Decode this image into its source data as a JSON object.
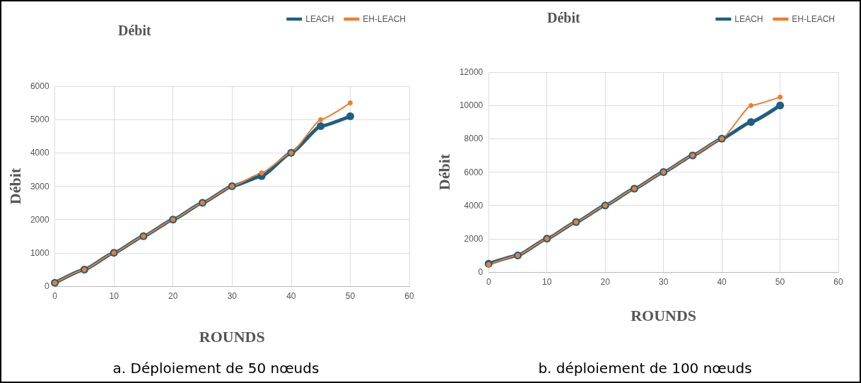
{
  "chart_data": [
    {
      "type": "line",
      "title": "Débit",
      "xlabel": "ROUNDS",
      "ylabel": "Débit",
      "annotations": [
        "a. Déploiement de 50 nœuds"
      ],
      "x": [
        0,
        5,
        10,
        15,
        20,
        25,
        30,
        35,
        40,
        45,
        50
      ],
      "xlim": [
        0,
        60
      ],
      "xticks": [
        0,
        10,
        20,
        30,
        40,
        50,
        60
      ],
      "ylim": [
        0,
        6000
      ],
      "yticks": [
        0,
        1000,
        2000,
        3000,
        4000,
        5000,
        6000
      ],
      "grid": true,
      "legend": "top right",
      "marker": "circle",
      "line_style": "solid",
      "series": [
        {
          "name": "LEACH",
          "color": "#1f5f80",
          "values": [
            100,
            500,
            1000,
            1500,
            2000,
            2500,
            3000,
            3300,
            4000,
            4800,
            5100
          ]
        },
        {
          "name": "EH-LEACH",
          "color": "#ed7d31",
          "values": [
            100,
            500,
            1000,
            1500,
            2000,
            2500,
            3000,
            3400,
            4000,
            5000,
            5500
          ]
        }
      ]
    },
    {
      "type": "line",
      "title": "Débit",
      "xlabel": "ROUNDS",
      "ylabel": "Débit",
      "annotations": [
        "b. déploiement de 100 nœuds"
      ],
      "x": [
        0,
        5,
        10,
        15,
        20,
        25,
        30,
        35,
        40,
        45,
        50
      ],
      "xlim": [
        0,
        60
      ],
      "xticks": [
        0,
        10,
        20,
        30,
        40,
        50,
        60
      ],
      "ylim": [
        0,
        12000
      ],
      "yticks": [
        0,
        2000,
        4000,
        6000,
        8000,
        10000,
        12000
      ],
      "grid": true,
      "legend": "top right",
      "marker": "circle",
      "line_style": "solid",
      "series": [
        {
          "name": "LEACH",
          "color": "#1f5f80",
          "values": [
            500,
            1000,
            2000,
            3000,
            4000,
            5000,
            6000,
            7000,
            8000,
            9000,
            10000
          ]
        },
        {
          "name": "EH-LEACH",
          "color": "#ed7d31",
          "values": [
            450,
            1000,
            2000,
            3000,
            4000,
            5000,
            6000,
            7000,
            8000,
            10000,
            10500
          ]
        }
      ]
    }
  ]
}
